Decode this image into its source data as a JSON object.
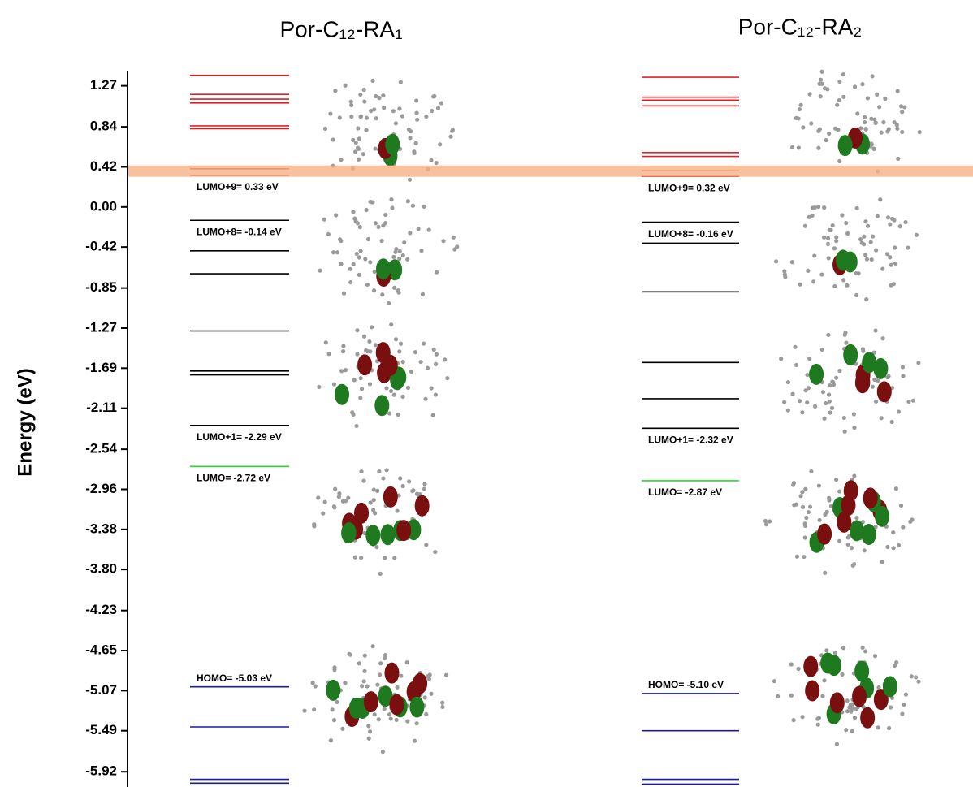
{
  "chart_data": {
    "type": "energy-level",
    "y_label": "Energy (eV)",
    "ylim": [
      -6.08,
      1.42
    ],
    "yticks": [
      1.27,
      0.84,
      0.42,
      {
        "value": 0,
        "label": "0.00"
      },
      -0.42,
      -0.85,
      -1.27,
      -1.69,
      -2.11,
      -2.54,
      -2.96,
      -3.38,
      {
        "value": -3.8,
        "label": "-3.80"
      },
      -4.23,
      -4.65,
      -5.07,
      -5.49,
      -5.92
    ],
    "band": {
      "range": [
        0.316,
        0.435
      ],
      "color": "#f4b183"
    },
    "panels": [
      {
        "title": "Por-C₁₂-RA₁",
        "series": [
          {
            "color": "#e02020",
            "values": [
              1.38,
              1.18,
              1.13,
              1.09,
              0.85,
              0.82,
              0.4,
              0.33
            ],
            "value_labels": [
              null,
              null,
              null,
              null,
              null,
              null,
              null,
              "LUMO+9= 0.33 eV"
            ]
          },
          {
            "color": "#000000",
            "values": [
              -0.14,
              -0.46,
              -0.7,
              -1.3,
              -1.72,
              -1.76,
              -2.29
            ],
            "value_labels": [
              "LUMO+8= -0.14 eV",
              null,
              null,
              null,
              null,
              null,
              "LUMO+1= -2.29 eV"
            ]
          },
          {
            "color": "#22dd22",
            "values": [
              -2.72
            ],
            "value_labels": [
              "LUMO= -2.72 eV"
            ]
          },
          {
            "color": "#1a1aa8",
            "values": [
              -5.03,
              -5.45,
              -6.0,
              -6.04
            ],
            "value_labels": [
              "HOMO= -5.03 eV",
              null,
              null,
              null
            ]
          }
        ]
      },
      {
        "title": "Por-C₁₂-RA₂",
        "series": [
          {
            "color": "#e02020",
            "values": [
              1.36,
              1.15,
              1.12,
              1.06,
              0.57,
              0.53,
              0.38,
              0.32
            ],
            "value_labels": [
              null,
              null,
              null,
              null,
              null,
              null,
              null,
              "LUMO+9= 0.32 eV"
            ]
          },
          {
            "color": "#000000",
            "values": [
              -0.16,
              -0.38,
              -0.89,
              -1.63,
              -2.01,
              -2.32
            ],
            "value_labels": [
              "LUMO+8= -0.16 eV",
              null,
              null,
              null,
              null,
              "LUMO+1= -2.32 eV"
            ]
          },
          {
            "color": "#22dd22",
            "values": [
              -2.87
            ],
            "value_labels": [
              "LUMO= -2.87 eV"
            ]
          },
          {
            "color": "#1a1aa8",
            "values": [
              -5.1,
              -5.49,
              -6.0,
              -6.05
            ],
            "value_labels": [
              "HOMO= -5.10 eV",
              null,
              null,
              null
            ]
          }
        ]
      }
    ]
  }
}
